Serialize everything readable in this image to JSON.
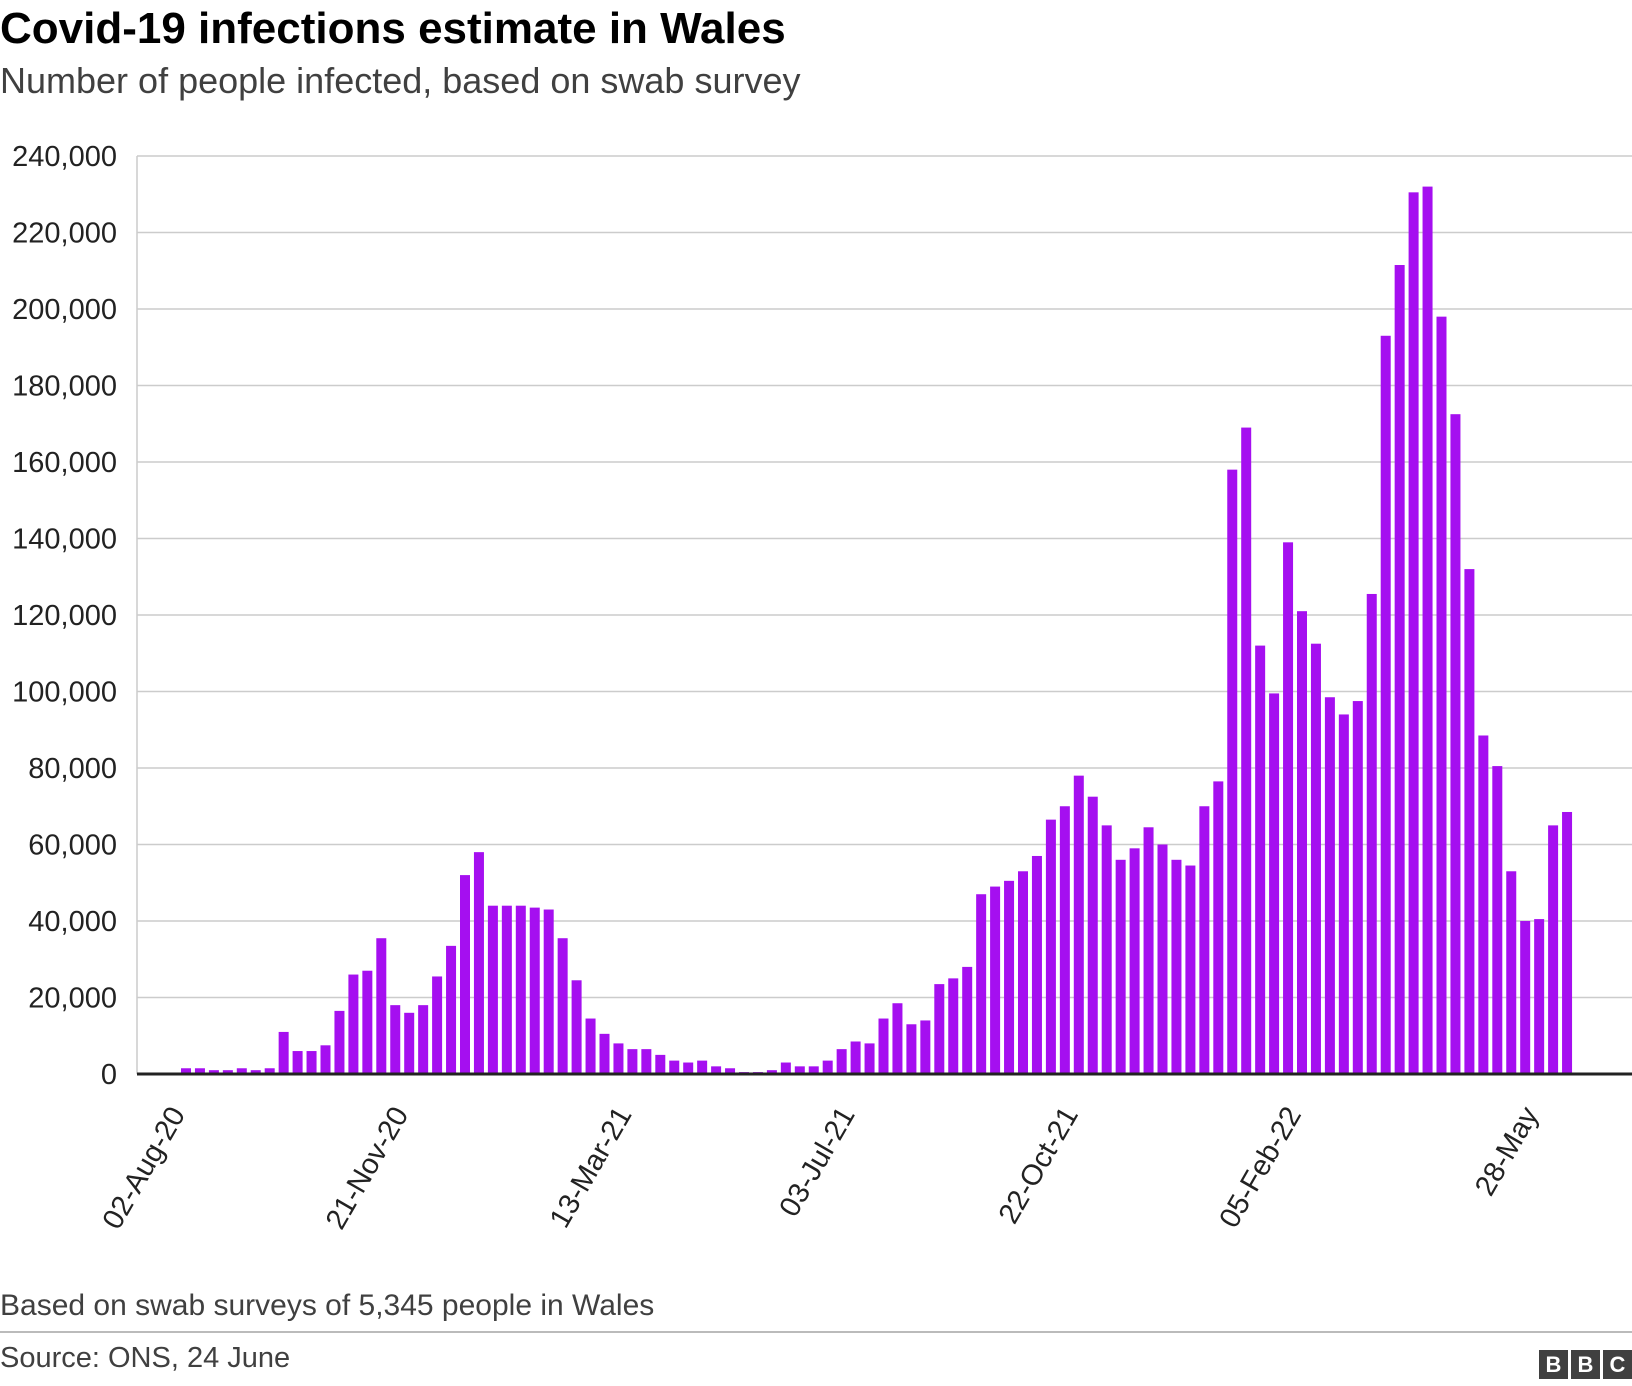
{
  "header": {
    "title": "Covid-19 infections estimate in Wales",
    "subtitle": "Number of people infected, based on swab survey"
  },
  "footer": {
    "note": "Based on swab surveys of 5,345 people in Wales",
    "source": "Source: ONS, 24 June",
    "logo_letters": [
      "B",
      "B",
      "C"
    ]
  },
  "colors": {
    "bar": "#a50ff0",
    "grid": "#cccccc",
    "axis": "#222222"
  },
  "chart_data": {
    "type": "bar",
    "title": "Covid-19 infections estimate in Wales",
    "subtitle": "Number of people infected, based on swab survey",
    "ylim": [
      0,
      240000
    ],
    "yticks": [
      0,
      20000,
      40000,
      60000,
      80000,
      100000,
      120000,
      140000,
      160000,
      180000,
      200000,
      220000,
      240000
    ],
    "ytick_labels": [
      "0",
      "20,000",
      "40,000",
      "60,000",
      "80,000",
      "100,000",
      "120,000",
      "140,000",
      "160,000",
      "180,000",
      "200,000",
      "220,000",
      "240,000"
    ],
    "x_tick_labels": [
      {
        "label": "02-Aug-20",
        "index": 0
      },
      {
        "label": "21-Nov-20",
        "index": 16
      },
      {
        "label": "13-Mar-21",
        "index": 32
      },
      {
        "label": "03-Jul-21",
        "index": 48
      },
      {
        "label": "22-Oct-21",
        "index": 64
      },
      {
        "label": "05-Feb-22",
        "index": 80
      },
      {
        "label": "28-May",
        "index": 97
      }
    ],
    "grid": true,
    "legend": "none",
    "series": [
      {
        "values": [
          1500,
          1500,
          1000,
          1000,
          1500,
          1000,
          1500,
          11000,
          6000,
          6000,
          7500,
          16500,
          26000,
          27000,
          35500,
          18000,
          16000,
          18000,
          25500,
          33500,
          52000,
          58000,
          44000,
          44000,
          44000,
          43500,
          43000,
          35500,
          24500,
          14500,
          10500,
          8000,
          6500,
          6500,
          5000,
          3500,
          3000,
          3500,
          2000,
          1500,
          500,
          500,
          1000,
          3000,
          2000,
          2000,
          3500,
          6500,
          8500,
          8000,
          14500,
          18500,
          13000,
          14000,
          23500,
          25000,
          28000,
          47000,
          49000,
          50500,
          53000,
          57000,
          66500,
          70000,
          78000,
          72500,
          65000,
          56000,
          59000,
          64500,
          60000,
          56000,
          54500,
          70000,
          76500,
          158000,
          169000,
          112000,
          99500,
          139000,
          121000,
          112500,
          98500,
          94000,
          97500,
          125500,
          193000,
          211500,
          230500,
          232000,
          198000,
          172500,
          132000,
          88500,
          80500,
          53000,
          40000,
          40500,
          65000,
          68500
        ]
      }
    ]
  }
}
